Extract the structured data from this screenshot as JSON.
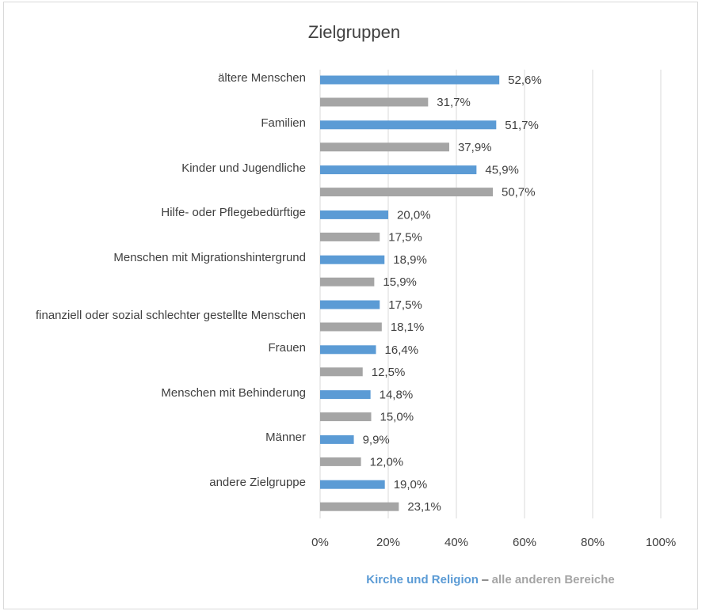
{
  "chart_data": {
    "type": "bar",
    "orientation": "horizontal",
    "title": "Zielgruppen",
    "categories": [
      "ältere Menschen",
      "Familien",
      "Kinder und Jugendliche",
      "Hilfe- oder Pflegebedürftige",
      "Menschen mit Migrationshintergrund",
      "finanziell oder sozial schlechter gestellte Menschen",
      "Frauen",
      "Menschen mit Behinderung",
      "Männer",
      "andere Zielgruppe"
    ],
    "series": [
      {
        "name": "Kirche und Religion",
        "color": "#5b9bd5",
        "values": [
          52.6,
          51.7,
          45.9,
          20.0,
          18.9,
          17.5,
          16.4,
          14.8,
          9.9,
          19.0
        ],
        "value_labels": [
          "52,6%",
          "51,7%",
          "45,9%",
          "20,0%",
          "18,9%",
          "17,5%",
          "16,4%",
          "14,8%",
          "9,9%",
          "19,0%"
        ]
      },
      {
        "name": "alle anderen Bereiche",
        "color": "#a5a5a5",
        "values": [
          31.7,
          37.9,
          50.7,
          17.5,
          15.9,
          18.1,
          12.5,
          15.0,
          12.0,
          23.1
        ],
        "value_labels": [
          "31,7%",
          "37,9%",
          "50,7%",
          "17,5%",
          "15,9%",
          "18,1%",
          "12,5%",
          "15,0%",
          "12,0%",
          "23,1%"
        ]
      }
    ],
    "xlim": [
      0,
      100
    ],
    "xticks": [
      {
        "value": 0,
        "label": "0%"
      },
      {
        "value": 20,
        "label": "20%"
      },
      {
        "value": 40,
        "label": "40%"
      },
      {
        "value": 60,
        "label": "60%"
      },
      {
        "value": 80,
        "label": "80%"
      },
      {
        "value": 100,
        "label": "100%"
      }
    ],
    "grid": true,
    "legend_separator": "–"
  }
}
